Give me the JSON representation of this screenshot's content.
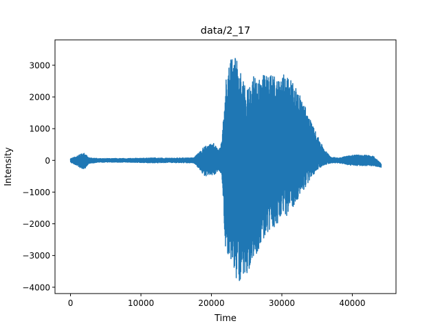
{
  "chart_data": {
    "type": "line",
    "title": "data/2_17",
    "xlabel": "Time",
    "ylabel": "Intensity",
    "xlim": [
      -2200,
      46200
    ],
    "ylim": [
      -4200,
      3800
    ],
    "x_ticks": [
      0,
      10000,
      20000,
      30000,
      40000
    ],
    "x_tick_labels": [
      "0",
      "10000",
      "20000",
      "30000",
      "40000"
    ],
    "y_ticks": [
      -4000,
      -3000,
      -2000,
      -1000,
      0,
      1000,
      2000,
      3000
    ],
    "y_tick_labels": [
      "−4000",
      "−3000",
      "−2000",
      "−1000",
      "0",
      "1000",
      "2000",
      "3000"
    ],
    "grid": false,
    "color": "#1f77b4",
    "series": [
      {
        "x_range": [
          0,
          44100
        ],
        "envelope_upper": [
          [
            0,
            60
          ],
          [
            800,
            120
          ],
          [
            1500,
            200
          ],
          [
            2000,
            230
          ],
          [
            2600,
            80
          ],
          [
            4000,
            60
          ],
          [
            8000,
            60
          ],
          [
            12000,
            80
          ],
          [
            14000,
            70
          ],
          [
            16000,
            80
          ],
          [
            17500,
            80
          ],
          [
            18000,
            200
          ],
          [
            19000,
            450
          ],
          [
            20500,
            550
          ],
          [
            21000,
            300
          ],
          [
            21500,
            600
          ],
          [
            22000,
            2600
          ],
          [
            22500,
            3000
          ],
          [
            23000,
            3400
          ],
          [
            23500,
            3200
          ],
          [
            24000,
            2900
          ],
          [
            24500,
            2500
          ],
          [
            25000,
            2200
          ],
          [
            25500,
            2500
          ],
          [
            26000,
            2650
          ],
          [
            27000,
            2700
          ],
          [
            28000,
            2700
          ],
          [
            29000,
            2700
          ],
          [
            29500,
            2600
          ],
          [
            30500,
            2800
          ],
          [
            31000,
            2600
          ],
          [
            32000,
            2300
          ],
          [
            33000,
            1900
          ],
          [
            34000,
            1300
          ],
          [
            35000,
            800
          ],
          [
            36000,
            350
          ],
          [
            37000,
            100
          ],
          [
            38000,
            80
          ],
          [
            40000,
            170
          ],
          [
            42000,
            170
          ],
          [
            43000,
            130
          ],
          [
            44100,
            -100
          ]
        ],
        "envelope_lower": [
          [
            0,
            -60
          ],
          [
            800,
            -150
          ],
          [
            1500,
            -250
          ],
          [
            2000,
            -280
          ],
          [
            2600,
            -100
          ],
          [
            4000,
            -60
          ],
          [
            8000,
            -60
          ],
          [
            12000,
            -80
          ],
          [
            14000,
            -70
          ],
          [
            16000,
            -80
          ],
          [
            17500,
            -80
          ],
          [
            18000,
            -200
          ],
          [
            19000,
            -500
          ],
          [
            20500,
            -450
          ],
          [
            21000,
            -300
          ],
          [
            21500,
            -500
          ],
          [
            22000,
            -2800
          ],
          [
            22500,
            -3000
          ],
          [
            23000,
            -3500
          ],
          [
            23500,
            -3700
          ],
          [
            24000,
            -3800
          ],
          [
            24500,
            -3750
          ],
          [
            25000,
            -3600
          ],
          [
            25500,
            -3400
          ],
          [
            26000,
            -3100
          ],
          [
            27000,
            -2700
          ],
          [
            28000,
            -2300
          ],
          [
            29000,
            -2100
          ],
          [
            29500,
            -2000
          ],
          [
            30500,
            -1800
          ],
          [
            31000,
            -1700
          ],
          [
            32000,
            -1300
          ],
          [
            33000,
            -1000
          ],
          [
            34000,
            -600
          ],
          [
            35000,
            -300
          ],
          [
            36000,
            -150
          ],
          [
            37000,
            -80
          ],
          [
            38000,
            -80
          ],
          [
            40000,
            -170
          ],
          [
            42000,
            -170
          ],
          [
            43000,
            -170
          ],
          [
            44100,
            -220
          ]
        ]
      }
    ]
  }
}
